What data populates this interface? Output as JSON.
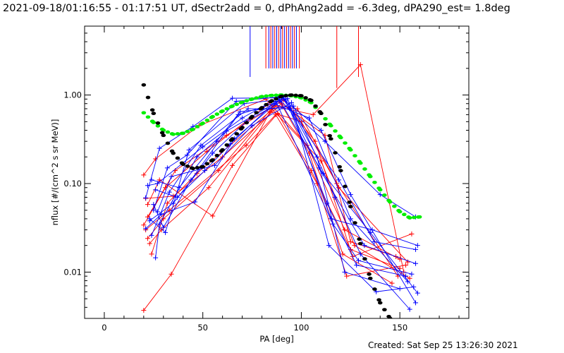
{
  "title": "2021-09-18/01:16:55 - 01:17:51 UT, dSectr2add = 0, dPhAng2add = -6.3deg, dPA290_est=  1.8deg",
  "footer": "Created: Sat Sep 25 13:26:30 2021",
  "chart_data": {
    "type": "line",
    "xlabel": "PA [deg]",
    "ylabel": "nflux [#/(cm^2 s sr MeV)]",
    "xlim": [
      -10,
      185
    ],
    "ylim": [
      0.003,
      6
    ],
    "yscale": "log",
    "grid": false,
    "x_ticks": [
      0,
      50,
      100,
      150
    ],
    "x_tick_labels": [
      "0",
      "50",
      "100",
      "150"
    ],
    "y_ticks": [
      0.01,
      0.1,
      1.0
    ],
    "y_tick_labels": [
      "0.01",
      "0.10",
      "1.00"
    ],
    "colors": {
      "red": "#ff0000",
      "blue": "#0000ff",
      "green": "#00ee00",
      "black": "#000000"
    },
    "vertical_markers": [
      {
        "x": 74,
        "color": "#0000ff",
        "y_from": 1.6
      },
      {
        "x": 82,
        "color": "#ff0000",
        "y_from": 2.0
      },
      {
        "x": 83.5,
        "color": "#0000ff",
        "y_from": 2.0
      },
      {
        "x": 84.5,
        "color": "#ff0000",
        "y_from": 2.0
      },
      {
        "x": 85.5,
        "color": "#0000ff",
        "y_from": 2.0
      },
      {
        "x": 86.5,
        "color": "#ff0000",
        "y_from": 2.0
      },
      {
        "x": 87.5,
        "color": "#0000ff",
        "y_from": 2.0
      },
      {
        "x": 88.5,
        "color": "#ff0000",
        "y_from": 2.0
      },
      {
        "x": 89.5,
        "color": "#0000ff",
        "y_from": 2.0
      },
      {
        "x": 90.5,
        "color": "#ff0000",
        "y_from": 2.0
      },
      {
        "x": 91.5,
        "color": "#0000ff",
        "y_from": 2.0
      },
      {
        "x": 92.5,
        "color": "#ff0000",
        "y_from": 2.0
      },
      {
        "x": 93.5,
        "color": "#0000ff",
        "y_from": 2.0
      },
      {
        "x": 94.5,
        "color": "#ff0000",
        "y_from": 2.0
      },
      {
        "x": 95.5,
        "color": "#0000ff",
        "y_from": 2.0
      },
      {
        "x": 96.5,
        "color": "#ff0000",
        "y_from": 2.0
      },
      {
        "x": 97.5,
        "color": "#0000ff",
        "y_from": 2.0
      },
      {
        "x": 99,
        "color": "#ff0000",
        "y_from": 2.0
      },
      {
        "x": 118,
        "color": "#ff0000",
        "y_from": 1.2
      },
      {
        "x": 129,
        "color": "#ff0000",
        "y_from": 1.6
      }
    ],
    "series": [
      {
        "color": "#ff0000",
        "x": [
          20,
          34,
          65,
          88,
          105,
          125,
          150
        ],
        "y": [
          0.0037,
          0.0095,
          0.16,
          0.62,
          0.14,
          0.018,
          0.011
        ]
      },
      {
        "color": "#ff0000",
        "x": [
          21,
          33,
          72,
          87,
          108,
          123,
          153
        ],
        "y": [
          0.03,
          0.05,
          0.27,
          0.6,
          0.1,
          0.009,
          0.012
        ]
      },
      {
        "color": "#ff0000",
        "x": [
          22,
          28,
          55,
          85,
          110,
          127,
          155
        ],
        "y": [
          0.058,
          0.11,
          0.043,
          0.7,
          0.18,
          0.02,
          0.0085
        ]
      },
      {
        "color": "#ff0000",
        "x": [
          20,
          26,
          48,
          82,
          103,
          122,
          150
        ],
        "y": [
          0.125,
          0.19,
          0.45,
          0.9,
          0.27,
          0.03,
          0.014
        ]
      },
      {
        "color": "#ff0000",
        "x": [
          21,
          35,
          60,
          90,
          112,
          125,
          148
        ],
        "y": [
          0.068,
          0.072,
          0.2,
          0.8,
          0.35,
          0.022,
          0.015
        ]
      },
      {
        "color": "#ff0000",
        "x": [
          22,
          30,
          58,
          86,
          106,
          130,
          152
        ],
        "y": [
          0.024,
          0.04,
          0.14,
          0.75,
          0.6,
          2.2,
          0.01
        ]
      },
      {
        "color": "#ff0000",
        "x": [
          23,
          29,
          53,
          89,
          104,
          121,
          146
        ],
        "y": [
          0.021,
          0.03,
          0.09,
          0.85,
          0.22,
          0.016,
          0.0075
        ]
      },
      {
        "color": "#ff0000",
        "x": [
          24,
          32,
          47,
          84,
          100,
          118,
          149
        ],
        "y": [
          0.016,
          0.06,
          0.13,
          0.65,
          0.5,
          0.1,
          0.009
        ]
      },
      {
        "color": "#ff0000",
        "x": [
          20,
          31,
          52,
          83,
          98,
          119,
          154
        ],
        "y": [
          0.034,
          0.09,
          0.23,
          0.78,
          0.7,
          0.09,
          0.013
        ]
      },
      {
        "color": "#ff0000",
        "x": [
          22,
          36,
          62,
          91,
          107,
          126,
          156
        ],
        "y": [
          0.042,
          0.14,
          0.35,
          0.88,
          0.3,
          0.015,
          0.027
        ]
      },
      {
        "color": "#0000ff",
        "x": [
          21,
          28,
          45,
          65,
          90,
          110,
          125,
          158
        ],
        "y": [
          0.069,
          0.25,
          0.44,
          0.92,
          0.93,
          0.4,
          0.075,
          0.0045
        ]
      },
      {
        "color": "#0000ff",
        "x": [
          22,
          27,
          50,
          70,
          88,
          112,
          140,
          158
        ],
        "y": [
          0.095,
          0.1,
          0.26,
          0.55,
          0.92,
          0.3,
          0.075,
          0.042
        ]
      },
      {
        "color": "#0000ff",
        "x": [
          23,
          35,
          55,
          72,
          92,
          108,
          122,
          150
        ],
        "y": [
          0.038,
          0.06,
          0.22,
          0.5,
          0.9,
          0.2,
          0.01,
          0.0065
        ]
      },
      {
        "color": "#0000ff",
        "x": [
          25,
          30,
          44,
          68,
          86,
          104,
          125,
          154
        ],
        "y": [
          0.058,
          0.032,
          0.11,
          0.6,
          0.8,
          0.55,
          0.04,
          0.0078
        ]
      },
      {
        "color": "#0000ff",
        "x": [
          26,
          28,
          47,
          62,
          89,
          111,
          135,
          159
        ],
        "y": [
          0.0145,
          0.035,
          0.2,
          0.39,
          0.87,
          0.13,
          0.028,
          0.0058
        ]
      },
      {
        "color": "#0000ff",
        "x": [
          24,
          33,
          49,
          73,
          94,
          113,
          128,
          153
        ],
        "y": [
          0.026,
          0.08,
          0.27,
          0.7,
          0.7,
          0.06,
          0.012,
          0.009
        ]
      },
      {
        "color": "#0000ff",
        "x": [
          27,
          34,
          56,
          75,
          95,
          114,
          138,
          157
        ],
        "y": [
          0.048,
          0.12,
          0.16,
          0.45,
          0.82,
          0.02,
          0.006,
          0.0068
        ]
      },
      {
        "color": "#0000ff",
        "x": [
          21,
          29,
          46,
          66,
          91,
          109,
          132,
          158
        ],
        "y": [
          0.031,
          0.045,
          0.062,
          0.32,
          0.95,
          0.15,
          0.02,
          0.0125
        ]
      },
      {
        "color": "#0000ff",
        "x": [
          26,
          37,
          51,
          64,
          87,
          116,
          129,
          156
        ],
        "y": [
          0.085,
          0.07,
          0.14,
          0.28,
          0.85,
          0.035,
          0.0135,
          0.0095
        ]
      },
      {
        "color": "#0000ff",
        "x": [
          23,
          31,
          43,
          71,
          93,
          115,
          136,
          159
        ],
        "y": [
          0.04,
          0.028,
          0.24,
          0.8,
          0.91,
          0.04,
          0.03,
          0.02
        ]
      },
      {
        "color": "#0000ff",
        "x": [
          24,
          38,
          57,
          69,
          96,
          117,
          130,
          155
        ],
        "y": [
          0.11,
          0.09,
          0.3,
          0.65,
          0.75,
          0.07,
          0.016,
          0.0038
        ]
      },
      {
        "color": "#0000ff",
        "x": [
          25,
          32,
          42,
          67,
          90,
          119,
          137,
          158
        ],
        "y": [
          0.05,
          0.15,
          0.21,
          0.85,
          0.96,
          0.11,
          0.022,
          0.018
        ]
      }
    ],
    "fit_curves": [
      {
        "color": "#00ee00",
        "x": [
          20,
          25,
          30,
          35,
          40,
          45,
          50,
          55,
          60,
          65,
          70,
          75,
          80,
          85,
          90,
          95,
          100,
          105,
          110,
          115,
          120,
          125,
          130,
          135,
          140,
          145,
          150,
          155,
          160
        ],
        "y": [
          0.63,
          0.49,
          0.4,
          0.36,
          0.37,
          0.41,
          0.48,
          0.57,
          0.66,
          0.75,
          0.83,
          0.9,
          0.96,
          0.99,
          1.0,
          0.98,
          0.93,
          0.82,
          0.62,
          0.45,
          0.33,
          0.24,
          0.17,
          0.12,
          0.085,
          0.062,
          0.048,
          0.041,
          0.042
        ]
      },
      {
        "color": "#000000",
        "x": [
          20,
          25,
          30,
          35,
          40,
          45,
          50,
          55,
          60,
          65,
          70,
          75,
          80,
          85,
          90,
          95,
          100,
          105,
          110,
          115,
          120,
          125,
          130,
          135,
          140,
          145
        ],
        "y": [
          1.3,
          0.62,
          0.35,
          0.22,
          0.165,
          0.148,
          0.155,
          0.185,
          0.24,
          0.32,
          0.43,
          0.57,
          0.72,
          0.86,
          0.97,
          1.0,
          0.98,
          0.87,
          0.62,
          0.32,
          0.14,
          0.055,
          0.021,
          0.0085,
          0.0045,
          0.003
        ]
      }
    ]
  }
}
